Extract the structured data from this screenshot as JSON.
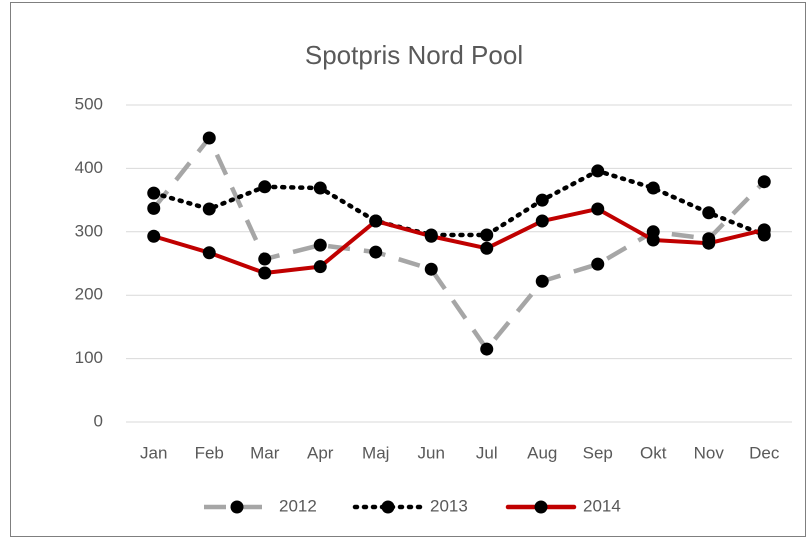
{
  "chart_data": {
    "type": "line",
    "title": "Spotpris Nord Pool",
    "categories": [
      "Jan",
      "Feb",
      "Mar",
      "Apr",
      "Maj",
      "Jun",
      "Jul",
      "Aug",
      "Sep",
      "Okt",
      "Nov",
      "Dec"
    ],
    "series": [
      {
        "name": "2012",
        "color": "#a6a6a6",
        "style": "dashed",
        "values": [
          337,
          448,
          257,
          279,
          268,
          241,
          115,
          222,
          249,
          300,
          289,
          379
        ]
      },
      {
        "name": "2013",
        "color": "#000000",
        "style": "dotted",
        "values": [
          361,
          336,
          371,
          369,
          317,
          295,
          295,
          350,
          396,
          369,
          330,
          295
        ]
      },
      {
        "name": "2014",
        "color": "#c00000",
        "style": "solid",
        "values": [
          293,
          267,
          235,
          245,
          317,
          293,
          274,
          317,
          336,
          287,
          282,
          303
        ]
      }
    ],
    "ylim": [
      0,
      500
    ],
    "yticks": [
      0,
      100,
      200,
      300,
      400,
      500
    ],
    "grid": true,
    "legend": "bottom"
  }
}
